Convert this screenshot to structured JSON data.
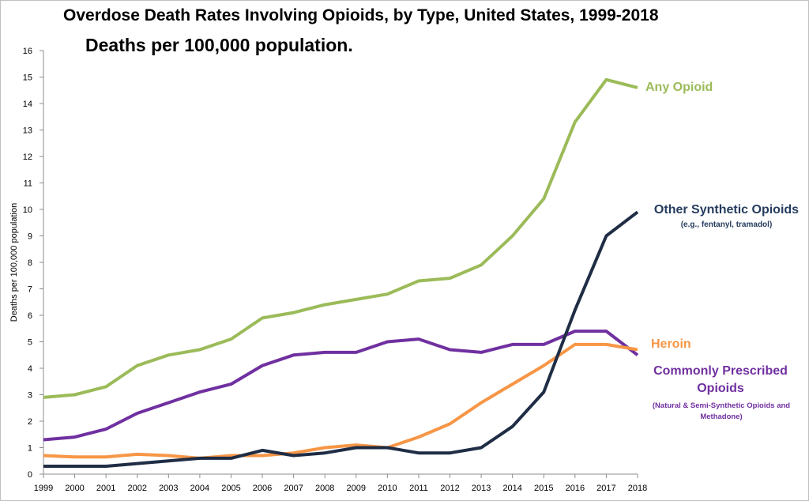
{
  "chart_data": {
    "type": "line",
    "title": "Overdose Death Rates Involving Opioids, by Type, United States, 1999-2018",
    "subtitle": "Deaths per 100,000 population.",
    "xlabel": "",
    "ylabel": "Deaths per 100,000 population",
    "ylim": [
      0,
      16
    ],
    "yticks": [
      0,
      1,
      2,
      3,
      4,
      5,
      6,
      7,
      8,
      9,
      10,
      11,
      12,
      13,
      14,
      15,
      16
    ],
    "x": [
      "1999",
      "2000",
      "2001",
      "2002",
      "2003",
      "2004",
      "2005",
      "2006",
      "2007",
      "2008",
      "2009",
      "2010",
      "2011",
      "2012",
      "2013",
      "2014",
      "2015",
      "2016",
      "2017",
      "2018"
    ],
    "grid": false,
    "legend": "direct labels at right",
    "series": [
      {
        "name": "Any Opioid",
        "color": "#9bbb59",
        "values": [
          2.9,
          3.0,
          3.3,
          4.1,
          4.5,
          4.7,
          5.1,
          5.9,
          6.1,
          6.4,
          6.6,
          6.8,
          7.3,
          7.4,
          7.9,
          9.0,
          10.4,
          13.3,
          14.9,
          14.6
        ]
      },
      {
        "name": "Other Synthetic Opioids",
        "note": "(e.g., fentanyl, tramadol)",
        "color": "#1f2d45",
        "values": [
          0.3,
          0.3,
          0.3,
          0.4,
          0.5,
          0.6,
          0.6,
          0.9,
          0.7,
          0.8,
          1.0,
          1.0,
          0.8,
          0.8,
          1.0,
          1.8,
          3.1,
          6.2,
          9.0,
          9.9
        ]
      },
      {
        "name": "Heroin",
        "color": "#f79646",
        "values": [
          0.7,
          0.65,
          0.65,
          0.75,
          0.7,
          0.6,
          0.7,
          0.7,
          0.8,
          1.0,
          1.1,
          1.0,
          1.4,
          1.9,
          2.7,
          3.4,
          4.1,
          4.9,
          4.9,
          4.7
        ]
      },
      {
        "name": "Commonly Prescribed Opioids",
        "note": "(Natural & Semi-Synthetic Opioids and Methadone)",
        "color": "#7030a0",
        "values": [
          1.3,
          1.4,
          1.7,
          2.3,
          2.7,
          3.1,
          3.4,
          4.1,
          4.5,
          4.6,
          4.6,
          5.0,
          5.1,
          4.7,
          4.6,
          4.9,
          4.9,
          5.4,
          5.4,
          4.5
        ]
      }
    ]
  },
  "labels": {
    "any": "Any Opioid",
    "synthetic": "Other Synthetic Opioids",
    "synthetic_sub": "(e.g., fentanyl, tramadol)",
    "heroin": "Heroin",
    "prescribed": "Commonly Prescribed Opioids",
    "prescribed_sub": "(Natural & Semi-Synthetic Opioids and Methadone)"
  }
}
